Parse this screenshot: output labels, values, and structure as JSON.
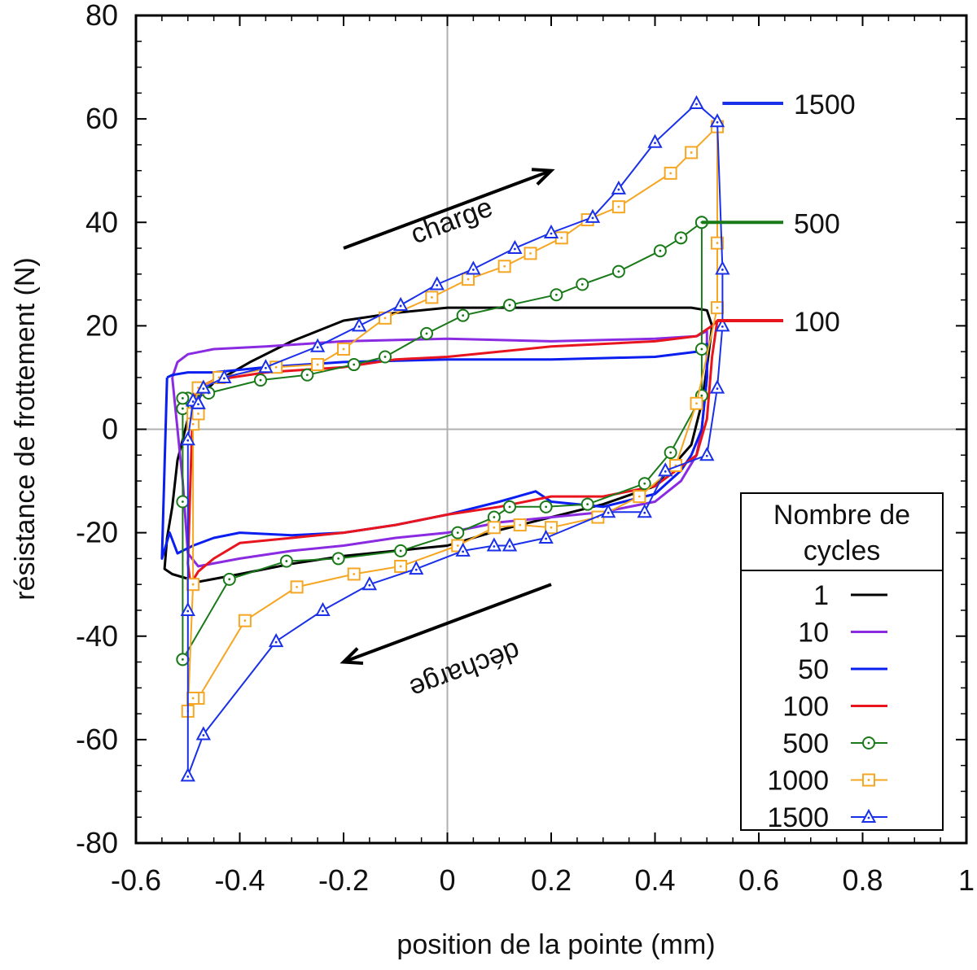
{
  "chart_data": {
    "type": "line",
    "xlabel": "position de la pointe (mm)",
    "ylabel": "résistance de frottement (N)",
    "xlim": [
      -0.6,
      1.0
    ],
    "ylim": [
      -80,
      80
    ],
    "x_ticks": [
      "-0.6",
      "-0.4",
      "-0.2",
      "0",
      "0.2",
      "0.4",
      "0.6",
      "0.8",
      "1"
    ],
    "y_ticks": [
      "80",
      "60",
      "40",
      "20",
      "0",
      "-20",
      "-40",
      "-60",
      "-80"
    ],
    "grid": "zero lines only",
    "legend_title": "Nombre de cycles",
    "legend_position": "bottom-right",
    "annotations": [
      {
        "text": "charge",
        "arrow_from": [
          -0.2,
          35
        ],
        "arrow_to": [
          0.2,
          50
        ]
      },
      {
        "text": "décharge",
        "arrow_from": [
          0.2,
          -30
        ],
        "arrow_to": [
          -0.2,
          -45
        ]
      }
    ],
    "end_labels": [
      {
        "text": "1500",
        "series": "1500",
        "y": 63
      },
      {
        "text": "500",
        "series": "500",
        "y": 40
      },
      {
        "text": "100",
        "series": "100",
        "y": 21
      }
    ],
    "series": [
      {
        "name": "1",
        "color": "#000000",
        "marker": "none",
        "x": [
          -0.49,
          -0.45,
          -0.38,
          -0.3,
          -0.2,
          -0.1,
          0.0,
          0.1,
          0.2,
          0.3,
          0.4,
          0.47,
          0.5,
          0.51,
          0.5,
          0.49,
          0.47,
          0.4,
          0.3,
          0.2,
          0.1,
          0.0,
          -0.1,
          -0.2,
          -0.3,
          -0.4,
          -0.48,
          -0.53,
          -0.545,
          -0.54,
          -0.53,
          -0.52,
          -0.5,
          -0.49
        ],
        "y": [
          5,
          9,
          13,
          17,
          21,
          22.5,
          23.5,
          23.5,
          23.5,
          23.5,
          23.5,
          23.5,
          23,
          20,
          12,
          5,
          -3,
          -11,
          -14.5,
          -17,
          -19.5,
          -22.5,
          -23.5,
          -24.5,
          -26,
          -28,
          -29.5,
          -28,
          -27,
          -21,
          -15,
          -6,
          2,
          5
        ]
      },
      {
        "name": "10",
        "color": "#8a2be2",
        "marker": "none",
        "x": [
          -0.53,
          -0.52,
          -0.5,
          -0.45,
          -0.35,
          -0.2,
          0.0,
          0.2,
          0.4,
          0.48,
          0.5,
          0.5,
          0.49,
          0.48,
          0.45,
          0.4,
          0.3,
          0.2,
          0.1,
          0.0,
          -0.1,
          -0.2,
          -0.3,
          -0.4,
          -0.48,
          -0.5,
          -0.51,
          -0.52,
          -0.53
        ],
        "y": [
          10,
          13,
          14.5,
          15.5,
          16,
          17,
          17.5,
          17,
          17.5,
          18,
          19,
          10,
          0,
          -5,
          -10,
          -14,
          -16,
          -17,
          -18,
          -20,
          -21,
          -22.5,
          -23.5,
          -25,
          -26.5,
          -24,
          -10,
          0,
          10
        ]
      },
      {
        "name": "50",
        "color": "#0a1ef0",
        "marker": "none",
        "x": [
          -0.54,
          -0.53,
          -0.5,
          -0.45,
          -0.35,
          -0.2,
          0.0,
          0.2,
          0.4,
          0.48,
          0.5,
          0.5,
          0.49,
          0.47,
          0.45,
          0.4,
          0.3,
          0.2,
          0.17,
          0.1,
          0.0,
          -0.1,
          -0.2,
          -0.3,
          -0.4,
          -0.45,
          -0.49,
          -0.52,
          -0.535,
          -0.55,
          -0.54
        ],
        "y": [
          10,
          10.5,
          11,
          11,
          12,
          13,
          13.5,
          13.5,
          14,
          15,
          16.5,
          10,
          0,
          -5,
          -8,
          -12.5,
          -15,
          -14,
          -12,
          -14,
          -16.5,
          -18.5,
          -20,
          -20.5,
          -20,
          -21,
          -22.5,
          -24,
          -20,
          -25,
          10
        ]
      },
      {
        "name": "100",
        "color": "#e8141e",
        "marker": "none",
        "x": [
          -0.49,
          -0.48,
          -0.45,
          -0.35,
          -0.2,
          -0.1,
          0.0,
          0.2,
          0.4,
          0.48,
          0.51,
          0.52,
          0.51,
          0.5,
          0.48,
          0.4,
          0.3,
          0.2,
          0.1,
          0.0,
          -0.1,
          -0.2,
          -0.3,
          -0.4,
          -0.45,
          -0.48,
          -0.495,
          -0.5,
          -0.495,
          -0.49
        ],
        "y": [
          6,
          8,
          9.5,
          11,
          12,
          13.5,
          14,
          16,
          17,
          18,
          20,
          21,
          14,
          2,
          -5,
          -11,
          -13,
          -13,
          -15,
          -16.5,
          -18.5,
          -20,
          -21,
          -22,
          -25,
          -27.5,
          -30,
          -26,
          -10,
          6
        ]
      },
      {
        "name": "500",
        "color": "#1a7a1a",
        "marker": "circle",
        "x": [
          -0.51,
          -0.5,
          -0.46,
          -0.36,
          -0.27,
          -0.18,
          -0.12,
          -0.04,
          0.03,
          0.12,
          0.21,
          0.26,
          0.33,
          0.41,
          0.45,
          0.49,
          0.49,
          0.49,
          0.49,
          0.43,
          0.38,
          0.27,
          0.19,
          0.12,
          0.09,
          0.02,
          -0.09,
          -0.21,
          -0.31,
          -0.42,
          -0.51,
          -0.51,
          -0.51,
          -0.51,
          -0.51
        ],
        "y": [
          4,
          6,
          7,
          9.5,
          10.5,
          12.5,
          14,
          18.5,
          22,
          24,
          26,
          28,
          30.5,
          34.5,
          37,
          40,
          40,
          15.5,
          6.5,
          -4.5,
          -10.5,
          -14.5,
          -15,
          -15,
          -17,
          -20,
          -23.5,
          -25,
          -25.5,
          -29,
          -44.5,
          -44.5,
          -14,
          4,
          6
        ]
      },
      {
        "name": "1000",
        "color": "#f5a623",
        "marker": "square",
        "x": [
          -0.49,
          -0.48,
          -0.44,
          -0.33,
          -0.25,
          -0.2,
          -0.12,
          -0.03,
          0.04,
          0.11,
          0.16,
          0.22,
          0.27,
          0.33,
          0.43,
          0.47,
          0.52,
          0.52,
          0.52,
          0.48,
          0.44,
          0.37,
          0.29,
          0.2,
          0.14,
          0.09,
          0.02,
          -0.09,
          -0.18,
          -0.29,
          -0.39,
          -0.48,
          -0.49,
          -0.5,
          -0.49,
          -0.49,
          -0.48
        ],
        "y": [
          3,
          8,
          10,
          12,
          12.5,
          15.5,
          21.5,
          25.5,
          29,
          31.5,
          34,
          37,
          40.5,
          43,
          49.5,
          53.5,
          58.5,
          36,
          23.5,
          5,
          -7,
          -13,
          -17,
          -19,
          -18.5,
          -19,
          -22.5,
          -26.5,
          -28,
          -30.5,
          -37,
          -52,
          -52,
          -54.5,
          -30,
          1,
          3
        ]
      },
      {
        "name": "1500",
        "color": "#1a30e8",
        "marker": "triangle",
        "x": [
          -0.48,
          -0.47,
          -0.43,
          -0.35,
          -0.25,
          -0.17,
          -0.09,
          -0.02,
          0.05,
          0.13,
          0.2,
          0.28,
          0.33,
          0.4,
          0.48,
          0.52,
          0.53,
          0.53,
          0.52,
          0.5,
          0.42,
          0.38,
          0.31,
          0.19,
          0.12,
          0.09,
          0.03,
          -0.06,
          -0.15,
          -0.24,
          -0.33,
          -0.47,
          -0.5,
          -0.5,
          -0.5,
          -0.49,
          -0.48
        ],
        "y": [
          5,
          8,
          10,
          12,
          16,
          20,
          24,
          28,
          31,
          35,
          38,
          41,
          46.5,
          55.5,
          63,
          59.5,
          31,
          20,
          8,
          -5,
          -8,
          -16,
          -16,
          -21,
          -22.5,
          -22.5,
          -23.5,
          -27,
          -30,
          -35,
          -41,
          -59,
          -67,
          -35,
          -2,
          5.5,
          5
        ]
      }
    ]
  }
}
